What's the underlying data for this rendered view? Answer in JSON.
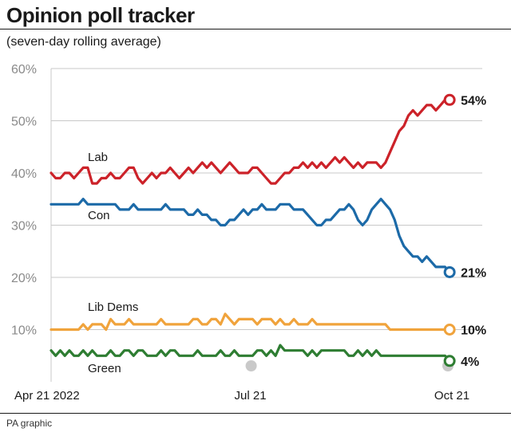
{
  "header": {
    "title": "Opinion poll tracker",
    "subtitle": "(seven-day rolling average)",
    "credit": "PA graphic"
  },
  "chart_data": {
    "type": "line",
    "title": "Opinion poll tracker",
    "subtitle": "(seven-day rolling average)",
    "ylim": [
      0,
      60
    ],
    "yticks": [
      10,
      20,
      30,
      40,
      50,
      60
    ],
    "ytick_labels": [
      "10%",
      "20%",
      "30%",
      "40%",
      "50%",
      "60%"
    ],
    "xlim": [
      0,
      175
    ],
    "xticks": [
      0,
      87,
      175
    ],
    "xtick_labels": [
      "Apr 21 2022",
      "Jul 21",
      "Oct 21"
    ],
    "grid": "horizontal",
    "series": [
      {
        "name": "Lab",
        "color": "#cc2229",
        "end_label": "54%",
        "x": [
          0,
          2,
          4,
          6,
          8,
          10,
          12,
          14,
          16,
          18,
          20,
          22,
          24,
          26,
          28,
          30,
          32,
          34,
          36,
          38,
          40,
          42,
          44,
          46,
          48,
          50,
          52,
          54,
          56,
          58,
          60,
          62,
          64,
          66,
          68,
          70,
          72,
          74,
          76,
          78,
          80,
          82,
          84,
          86,
          88,
          90,
          92,
          94,
          96,
          98,
          100,
          102,
          104,
          106,
          108,
          110,
          112,
          114,
          116,
          118,
          120,
          122,
          124,
          126,
          128,
          130,
          132,
          134,
          136,
          138,
          140,
          142,
          144,
          146,
          148,
          150,
          152,
          154,
          156,
          158,
          160,
          162,
          164,
          166,
          168,
          170,
          172,
          174
        ],
        "values": [
          40,
          39,
          39,
          40,
          40,
          39,
          40,
          41,
          41,
          38,
          38,
          39,
          39,
          40,
          39,
          39,
          40,
          41,
          41,
          39,
          38,
          39,
          40,
          39,
          40,
          40,
          41,
          40,
          39,
          40,
          41,
          40,
          41,
          42,
          41,
          42,
          41,
          40,
          41,
          42,
          41,
          40,
          40,
          40,
          41,
          41,
          40,
          39,
          38,
          38,
          39,
          40,
          40,
          41,
          41,
          42,
          41,
          42,
          41,
          42,
          41,
          42,
          43,
          42,
          43,
          42,
          41,
          42,
          41,
          42,
          42,
          42,
          41,
          42,
          44,
          46,
          48,
          49,
          51,
          52,
          51,
          52,
          53,
          53,
          52,
          53,
          54,
          54
        ]
      },
      {
        "name": "Con",
        "color": "#1c6aa8",
        "end_label": "21%",
        "x": [
          0,
          2,
          4,
          6,
          8,
          10,
          12,
          14,
          16,
          18,
          20,
          22,
          24,
          26,
          28,
          30,
          32,
          34,
          36,
          38,
          40,
          42,
          44,
          46,
          48,
          50,
          52,
          54,
          56,
          58,
          60,
          62,
          64,
          66,
          68,
          70,
          72,
          74,
          76,
          78,
          80,
          82,
          84,
          86,
          88,
          90,
          92,
          94,
          96,
          98,
          100,
          102,
          104,
          106,
          108,
          110,
          112,
          114,
          116,
          118,
          120,
          122,
          124,
          126,
          128,
          130,
          132,
          134,
          136,
          138,
          140,
          142,
          144,
          146,
          148,
          150,
          152,
          154,
          156,
          158,
          160,
          162,
          164,
          166,
          168,
          170,
          172,
          174
        ],
        "values": [
          34,
          34,
          34,
          34,
          34,
          34,
          34,
          35,
          34,
          34,
          34,
          34,
          34,
          34,
          34,
          33,
          33,
          33,
          34,
          33,
          33,
          33,
          33,
          33,
          33,
          34,
          33,
          33,
          33,
          33,
          32,
          32,
          33,
          32,
          32,
          31,
          31,
          30,
          30,
          31,
          31,
          32,
          33,
          32,
          33,
          33,
          34,
          33,
          33,
          33,
          34,
          34,
          34,
          33,
          33,
          33,
          32,
          31,
          30,
          30,
          31,
          31,
          32,
          33,
          33,
          34,
          33,
          31,
          30,
          31,
          33,
          34,
          35,
          34,
          33,
          31,
          28,
          26,
          25,
          24,
          24,
          23,
          24,
          23,
          22,
          22,
          22,
          21
        ]
      },
      {
        "name": "Lib Dems",
        "color": "#f0a33c",
        "end_label": "10%",
        "x": [
          0,
          2,
          4,
          6,
          8,
          10,
          12,
          14,
          16,
          18,
          20,
          22,
          24,
          26,
          28,
          30,
          32,
          34,
          36,
          38,
          40,
          42,
          44,
          46,
          48,
          50,
          52,
          54,
          56,
          58,
          60,
          62,
          64,
          66,
          68,
          70,
          72,
          74,
          76,
          78,
          80,
          82,
          84,
          86,
          88,
          90,
          92,
          94,
          96,
          98,
          100,
          102,
          104,
          106,
          108,
          110,
          112,
          114,
          116,
          118,
          120,
          122,
          124,
          126,
          128,
          130,
          132,
          134,
          136,
          138,
          140,
          142,
          144,
          146,
          148,
          150,
          152,
          154,
          156,
          158,
          160,
          162,
          164,
          166,
          168,
          170,
          172,
          174
        ],
        "values": [
          10,
          10,
          10,
          10,
          10,
          10,
          10,
          11,
          10,
          11,
          11,
          11,
          10,
          12,
          11,
          11,
          11,
          12,
          11,
          11,
          11,
          11,
          11,
          11,
          12,
          11,
          11,
          11,
          11,
          11,
          11,
          12,
          12,
          11,
          11,
          12,
          12,
          11,
          13,
          12,
          11,
          12,
          12,
          12,
          12,
          11,
          12,
          12,
          12,
          11,
          12,
          11,
          11,
          12,
          11,
          11,
          11,
          12,
          11,
          11,
          11,
          11,
          11,
          11,
          11,
          11,
          11,
          11,
          11,
          11,
          11,
          11,
          11,
          11,
          10,
          10,
          10,
          10,
          10,
          10,
          10,
          10,
          10,
          10,
          10,
          10,
          10,
          10
        ]
      },
      {
        "name": "Green",
        "color": "#2e7d32",
        "end_label": "4%",
        "x": [
          0,
          2,
          4,
          6,
          8,
          10,
          12,
          14,
          16,
          18,
          20,
          22,
          24,
          26,
          28,
          30,
          32,
          34,
          36,
          38,
          40,
          42,
          44,
          46,
          48,
          50,
          52,
          54,
          56,
          58,
          60,
          62,
          64,
          66,
          68,
          70,
          72,
          74,
          76,
          78,
          80,
          82,
          84,
          86,
          88,
          90,
          92,
          94,
          96,
          98,
          100,
          102,
          104,
          106,
          108,
          110,
          112,
          114,
          116,
          118,
          120,
          122,
          124,
          126,
          128,
          130,
          132,
          134,
          136,
          138,
          140,
          142,
          144,
          146,
          148,
          150,
          152,
          154,
          156,
          158,
          160,
          162,
          164,
          166,
          168,
          170,
          172,
          174
        ],
        "values": [
          6,
          5,
          6,
          5,
          6,
          5,
          5,
          6,
          5,
          6,
          5,
          5,
          5,
          6,
          5,
          5,
          6,
          6,
          5,
          6,
          6,
          5,
          5,
          5,
          6,
          5,
          6,
          6,
          5,
          5,
          5,
          5,
          6,
          5,
          5,
          5,
          5,
          6,
          5,
          5,
          6,
          5,
          5,
          5,
          5,
          6,
          6,
          5,
          6,
          5,
          7,
          6,
          6,
          6,
          6,
          6,
          5,
          6,
          5,
          6,
          6,
          6,
          6,
          6,
          6,
          5,
          5,
          6,
          5,
          6,
          5,
          6,
          5,
          5,
          5,
          5,
          5,
          5,
          5,
          5,
          5,
          5,
          5,
          5,
          5,
          5,
          5,
          4
        ]
      }
    ]
  }
}
